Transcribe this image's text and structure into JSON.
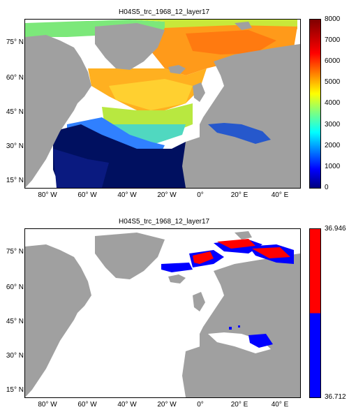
{
  "maps": [
    {
      "title": "H04S5_trc_1968_12_layer17",
      "y_ticks": [
        "75° N",
        "60° N",
        "45° N",
        "30° N",
        "15° N"
      ],
      "x_ticks": [
        "80° W",
        "60° W",
        "40° W",
        "20° W",
        "0°",
        "20° E",
        "40° E"
      ],
      "colorbar": {
        "type": "continuous-jet",
        "ticks": [
          "0",
          "1000",
          "2000",
          "3000",
          "4000",
          "5000",
          "6000",
          "7000",
          "8000"
        ],
        "range": [
          0,
          8000
        ]
      },
      "colors": {
        "land": "#a0a0a0",
        "nodata": "#ffffff"
      }
    },
    {
      "title": "H04S5_trc_1968_12_layer17",
      "y_ticks": [
        "75° N",
        "60° N",
        "45° N",
        "30° N",
        "15° N"
      ],
      "x_ticks": [
        "80° W",
        "60° W",
        "40° W",
        "20° W",
        "0°",
        "20° E",
        "40° E"
      ],
      "colorbar": {
        "type": "two-class",
        "ticks": [
          "36.946",
          "36.712"
        ],
        "colors": [
          "#ff0000",
          "#0000ff"
        ]
      },
      "colors": {
        "land": "#a0a0a0",
        "nodata": "#ffffff"
      }
    }
  ]
}
